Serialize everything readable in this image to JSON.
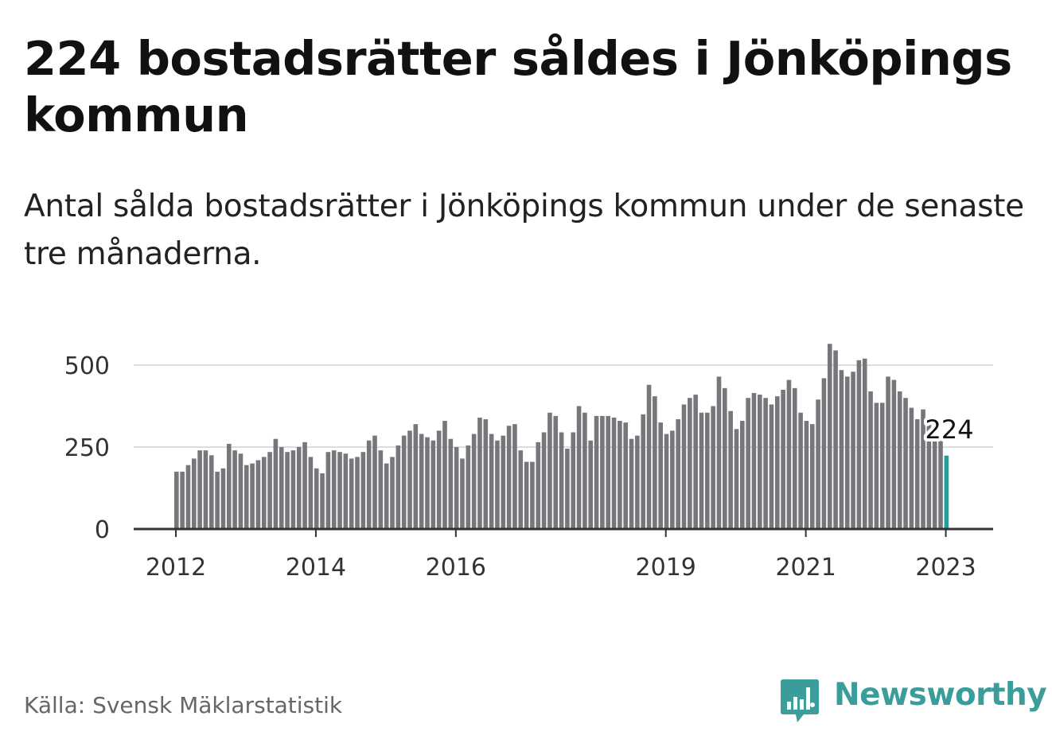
{
  "title": "224 bostadsrätter såldes i Jönköpings kommun",
  "subtitle": "Antal sålda bostadsrätter i Jönköpings kommun under de senaste tre månaderna.",
  "source": "Källa: Svensk Mäklarstatistik",
  "brand": {
    "name": "Newsworthy",
    "color": "#3a9d99",
    "icon": "bar-chart-bubble-icon"
  },
  "colors": {
    "bar": "#77767b",
    "highlight": "#1aa39b",
    "grid": "#dddddd",
    "axis": "#333333"
  },
  "chart_data": {
    "type": "bar",
    "title": "224 bostadsrätter såldes i Jönköpings kommun",
    "xlabel": "",
    "ylabel": "",
    "ylim": [
      0,
      600
    ],
    "yticks": [
      0,
      250,
      500
    ],
    "ytick_labels": [
      "0",
      "250",
      "500"
    ],
    "xtick_labels": [
      "2012",
      "2014",
      "2016",
      "2019",
      "2021",
      "2023"
    ],
    "xtick_positions": [
      0,
      24,
      48,
      84,
      108,
      132
    ],
    "grid": true,
    "highlight_label": "224",
    "categories_note": "monthly values, January 2012 to February 2023",
    "values": [
      175,
      175,
      195,
      215,
      240,
      240,
      225,
      175,
      185,
      260,
      240,
      230,
      195,
      200,
      210,
      220,
      235,
      275,
      250,
      235,
      240,
      250,
      265,
      220,
      185,
      170,
      235,
      240,
      235,
      230,
      215,
      220,
      235,
      270,
      285,
      240,
      200,
      220,
      255,
      285,
      300,
      320,
      290,
      280,
      270,
      300,
      330,
      275,
      250,
      215,
      255,
      290,
      340,
      335,
      290,
      270,
      285,
      315,
      320,
      240,
      205,
      205,
      265,
      295,
      355,
      345,
      295,
      245,
      295,
      375,
      355,
      270,
      345,
      345,
      345,
      340,
      330,
      325,
      275,
      285,
      350,
      440,
      405,
      325,
      290,
      300,
      335,
      380,
      400,
      410,
      355,
      355,
      375,
      465,
      430,
      360,
      305,
      330,
      400,
      415,
      410,
      400,
      380,
      405,
      425,
      455,
      430,
      355,
      330,
      320,
      395,
      460,
      565,
      545,
      485,
      465,
      480,
      515,
      520,
      420,
      385,
      385,
      465,
      455,
      420,
      400,
      370,
      335,
      365,
      335,
      270,
      270,
      224
    ]
  }
}
